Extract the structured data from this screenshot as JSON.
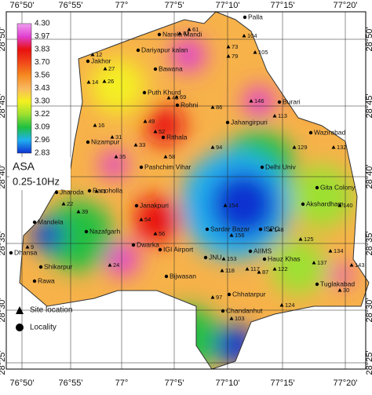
{
  "axes": {
    "top": [
      "76°50'",
      "76°55'",
      "77°",
      "77°5'",
      "77°10'",
      "77°15'",
      "77°20'"
    ],
    "bottom": [
      "76°50'",
      "76°55'",
      "77°",
      "77°5'",
      "77°10'",
      "77°15'",
      "77°20'"
    ],
    "left": [
      "28°50'",
      "28°45'",
      "28°40'",
      "28°35'",
      "28°30'",
      "28°25'"
    ],
    "right": [
      "28°50'",
      "28°45'",
      "28°40'",
      "28°35'",
      "28°30'",
      "28°25'"
    ]
  },
  "legend": {
    "title": "ASA",
    "subtitle": "0.25-10Hz",
    "scale": [
      {
        "value": 4.3,
        "label": "4.30"
      },
      {
        "value": 3.97,
        "label": "3.97"
      },
      {
        "value": 3.83,
        "label": "3.83"
      },
      {
        "value": 3.7,
        "label": "3.70"
      },
      {
        "value": 3.56,
        "label": "3.56"
      },
      {
        "value": 3.43,
        "label": "3.43"
      },
      {
        "value": 3.3,
        "label": "3.30"
      },
      {
        "value": 3.22,
        "label": "3.22"
      },
      {
        "value": 3.09,
        "label": "3.09"
      },
      {
        "value": 2.96,
        "label": "2.96"
      },
      {
        "value": 2.83,
        "label": "2.83"
      }
    ],
    "items": [
      "Site location",
      "Locality"
    ]
  },
  "places": [
    "Palla",
    "Narela Mandi",
    "Dariyapur kalan",
    "Bawana",
    "Jakhor",
    "Puth Khurd",
    "Rohni",
    "Burari",
    "Jahangirpuri",
    "Rithala",
    "Wazirabad",
    "Nizampur",
    "Pashchim Vihar",
    "Delhi Univ",
    "Jharoda",
    "Ranoholla",
    "Gita Colony",
    "Janakpuri",
    "Akshardham",
    "Mandela",
    "Nazafgarh",
    "Sardar Bazar",
    "ISPC",
    "Dwarka",
    "IGI Airport",
    "AIIMS",
    "Dhansa",
    "Hauz Khas",
    "JNU",
    "Shikarpur",
    "Bijwasan",
    "Rawa",
    "Tuglakabad",
    "Chhatarpur",
    "Chandanhut"
  ],
  "sites": [
    61,
    104,
    105,
    82,
    73,
    79,
    12,
    27,
    26,
    14,
    43,
    69,
    86,
    146,
    113,
    16,
    49,
    52,
    31,
    35,
    33,
    58,
    94,
    154,
    156,
    148,
    140,
    132,
    129,
    122,
    124,
    103,
    97,
    87,
    117,
    24,
    9,
    41,
    54,
    56,
    153,
    118,
    137,
    30,
    143,
    134,
    125,
    22,
    39
  ]
}
